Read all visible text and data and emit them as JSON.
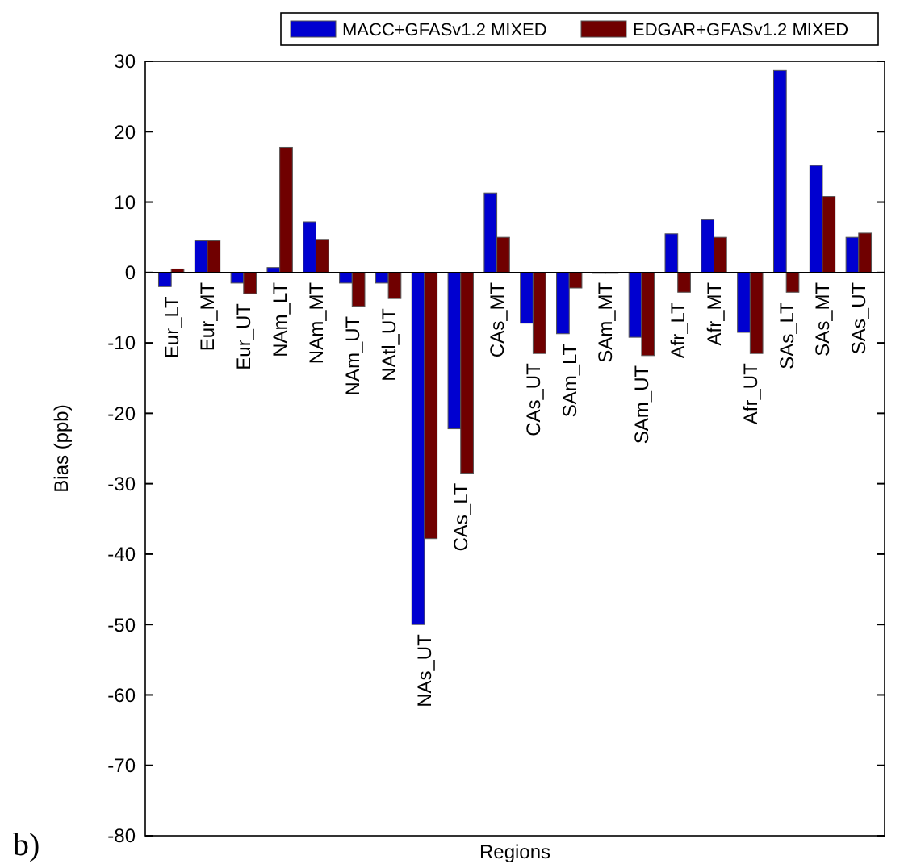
{
  "chart_data": {
    "type": "bar",
    "xlabel": "Regions",
    "ylabel": "Bias (ppb)",
    "annotations": [
      "b)"
    ],
    "categories": [
      "Eur_LT",
      "Eur_MT",
      "Eur_UT",
      "NAm_LT",
      "NAm_MT",
      "NAm_UT",
      "NAtl_UT",
      "NAs_UT",
      "CAs_LT",
      "CAs_MT",
      "CAs_UT",
      "SAm_LT",
      "SAm_MT",
      "SAm_UT",
      "Afr_LT",
      "Afr_MT",
      "Afr_UT",
      "SAs_LT",
      "SAs_MT",
      "SAs_UT"
    ],
    "series": [
      {
        "name": "MACC+GFASv1.2 MIXED",
        "color": "#0000d0",
        "values": [
          -2,
          4.5,
          -1.5,
          0.7,
          7.2,
          -1.5,
          -1.5,
          -50,
          -22.2,
          11.3,
          -7.2,
          -8.7,
          0,
          -9.2,
          5.5,
          7.5,
          -8.5,
          28.7,
          15.2,
          5
        ]
      },
      {
        "name": "EDGAR+GFASv1.2 MIXED",
        "color": "#700000",
        "values": [
          0.5,
          4.5,
          -3,
          17.8,
          4.7,
          -4.8,
          -3.7,
          -37.8,
          -28.5,
          5,
          -11.5,
          -2.2,
          0,
          -11.8,
          -2.8,
          5,
          -11.5,
          -2.8,
          10.8,
          5.6
        ]
      }
    ],
    "ylim": [
      -80,
      30
    ],
    "yticks": [
      -80,
      -70,
      -60,
      -50,
      -40,
      -30,
      -20,
      -10,
      0,
      10,
      20,
      30
    ],
    "legend": "top"
  }
}
